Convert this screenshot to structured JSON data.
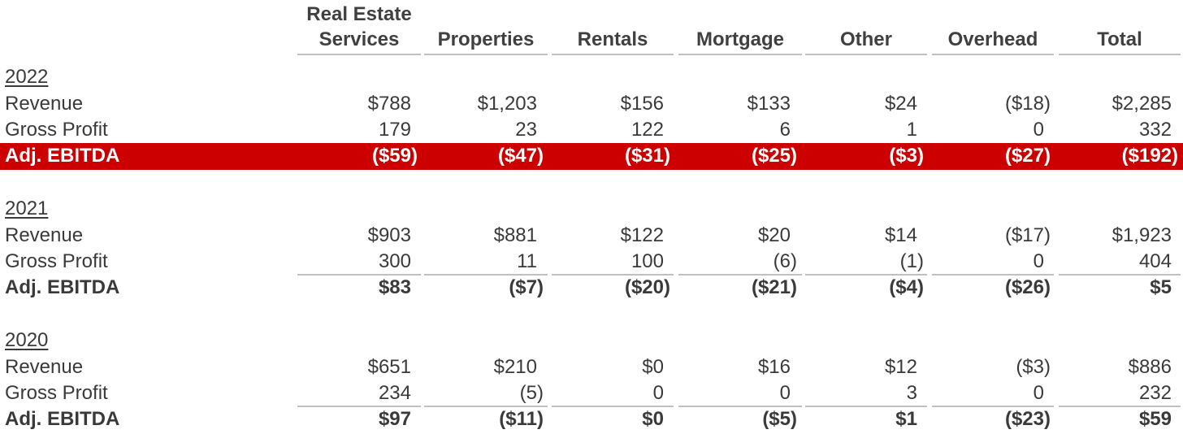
{
  "columns": [
    "Real Estate Services",
    "Properties",
    "Rentals",
    "Mortgage",
    "Other",
    "Overhead",
    "Total"
  ],
  "header": {
    "col0_line1": "Real Estate",
    "col0_line2": "Services",
    "col1": "Properties",
    "col2": "Rentals",
    "col3": "Mortgage",
    "col4": "Other",
    "col5": "Overhead",
    "col6": "Total"
  },
  "sections": [
    {
      "year": "2022",
      "rows": [
        {
          "label": "Revenue",
          "values": [
            "$788",
            "$1,203",
            "$156",
            "$133",
            "$24",
            "($18)",
            "$2,285"
          ]
        },
        {
          "label": "Gross Profit",
          "values": [
            "179",
            "23",
            "122",
            "6",
            "1",
            "0",
            "332"
          ]
        },
        {
          "label": "Adj. EBITDA",
          "values": [
            "($59)",
            "($47)",
            "($31)",
            "($25)",
            "($3)",
            "($27)",
            "($192)"
          ]
        }
      ]
    },
    {
      "year": "2021",
      "rows": [
        {
          "label": "Revenue",
          "values": [
            "$903",
            "$881",
            "$122",
            "$20",
            "$14",
            "($17)",
            "$1,923"
          ]
        },
        {
          "label": "Gross Profit",
          "values": [
            "300",
            "11",
            "100",
            "(6)",
            "(1)",
            "0",
            "404"
          ]
        },
        {
          "label": "Adj. EBITDA",
          "values": [
            "$83",
            "($7)",
            "($20)",
            "($21)",
            "($4)",
            "($26)",
            "$5"
          ]
        }
      ]
    },
    {
      "year": "2020",
      "rows": [
        {
          "label": "Revenue",
          "values": [
            "$651",
            "$210",
            "$0",
            "$16",
            "$12",
            "($3)",
            "$886"
          ]
        },
        {
          "label": "Gross Profit",
          "values": [
            "234",
            "(5)",
            "0",
            "0",
            "3",
            "0",
            "232"
          ]
        },
        {
          "label": "Adj. EBITDA",
          "values": [
            "$97",
            "($11)",
            "$0",
            "($5)",
            "$1",
            "($23)",
            "$59"
          ]
        }
      ]
    }
  ],
  "colors": {
    "highlight": "#cc0000",
    "rule": "#c0c0c0",
    "text": "#3a3a3a"
  }
}
